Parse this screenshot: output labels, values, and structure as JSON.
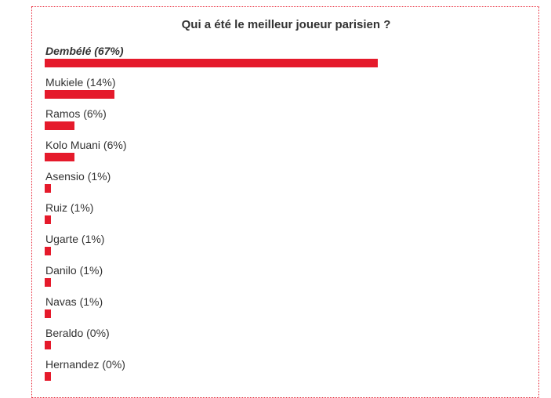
{
  "poll": {
    "title": "Qui a été le meilleur joueur parisien ?",
    "bar_color": "#e51a2b",
    "options": [
      {
        "label": "Dembélé (67%)",
        "name": "Dembélé",
        "percent": 67,
        "winner": true
      },
      {
        "label": "Mukiele (14%)",
        "name": "Mukiele",
        "percent": 14,
        "winner": false
      },
      {
        "label": "Ramos (6%)",
        "name": "Ramos",
        "percent": 6,
        "winner": false
      },
      {
        "label": "Kolo Muani (6%)",
        "name": "Kolo Muani",
        "percent": 6,
        "winner": false
      },
      {
        "label": "Asensio (1%)",
        "name": "Asensio",
        "percent": 1,
        "winner": false
      },
      {
        "label": "Ruiz (1%)",
        "name": "Ruiz",
        "percent": 1,
        "winner": false
      },
      {
        "label": "Ugarte (1%)",
        "name": "Ugarte",
        "percent": 1,
        "winner": false
      },
      {
        "label": "Danilo (1%)",
        "name": "Danilo",
        "percent": 1,
        "winner": false
      },
      {
        "label": "Navas (1%)",
        "name": "Navas",
        "percent": 1,
        "winner": false
      },
      {
        "label": "Beraldo (0%)",
        "name": "Beraldo",
        "percent": 0,
        "winner": false
      },
      {
        "label": "Hernandez (0%)",
        "name": "Hernandez",
        "percent": 0,
        "winner": false
      }
    ]
  }
}
